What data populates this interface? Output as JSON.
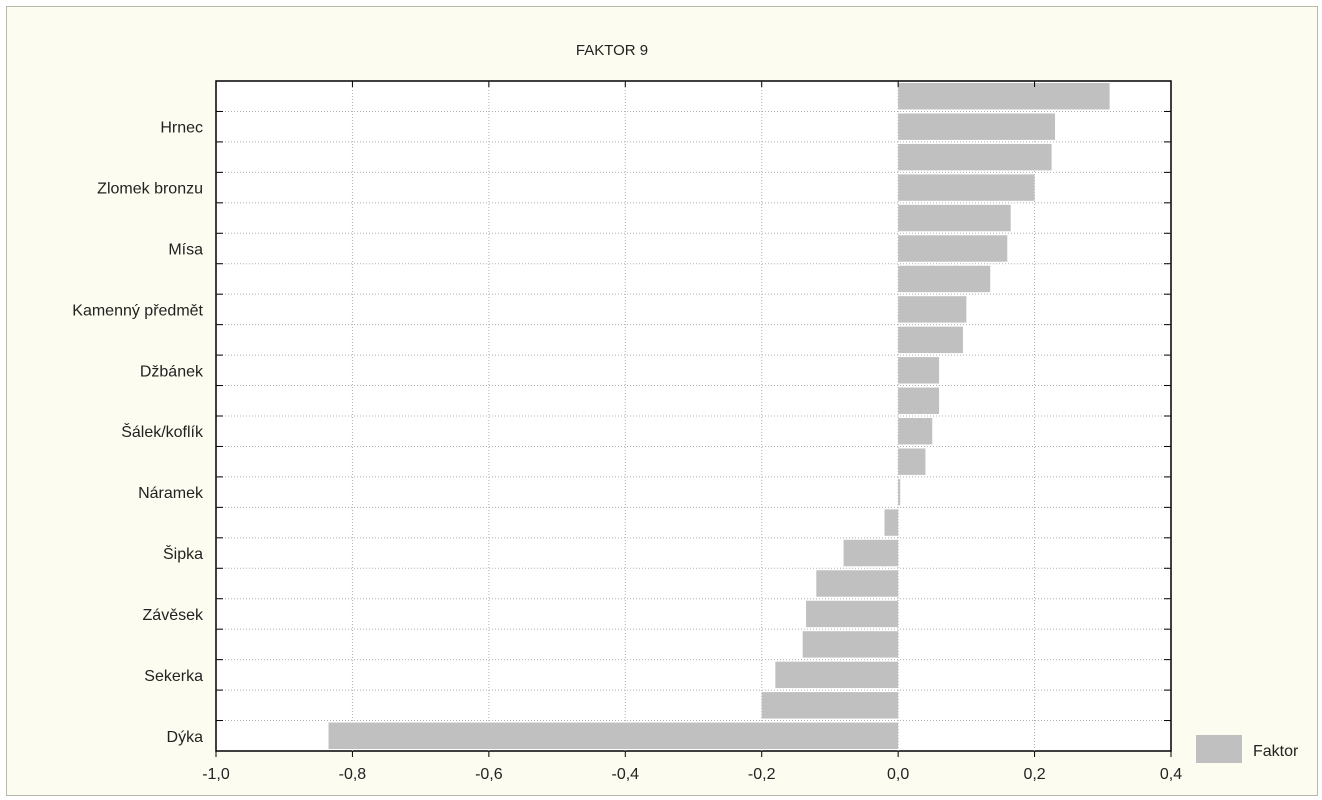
{
  "chart_data": {
    "type": "bar",
    "orientation": "horizontal",
    "title": "FAKTOR 9",
    "xlim": [
      -1.0,
      0.4
    ],
    "x_ticks": [
      "-1,0",
      "-0,8",
      "-0,6",
      "-0,4",
      "-0,2",
      "0,0",
      "0,2",
      "0,4"
    ],
    "x_tick_values": [
      -1.0,
      -0.8,
      -0.6,
      -0.4,
      -0.2,
      0.0,
      0.2,
      0.4
    ],
    "grid": true,
    "legend_position": "bottom-right",
    "bar_color": "#c0c0c0",
    "series": [
      {
        "name": "Faktor",
        "values": [
          0.31,
          0.23,
          0.225,
          0.2,
          0.165,
          0.16,
          0.135,
          0.1,
          0.095,
          0.06,
          0.06,
          0.05,
          0.04,
          0.003,
          -0.02,
          -0.08,
          -0.12,
          -0.135,
          -0.14,
          -0.18,
          -0.2,
          -0.835
        ]
      }
    ],
    "category_labels": [
      {
        "index": 1,
        "label": "Hrnec"
      },
      {
        "index": 3,
        "label": "Zlomek bronzu"
      },
      {
        "index": 5,
        "label": "Mísa"
      },
      {
        "index": 7,
        "label": "Kamenný předmět"
      },
      {
        "index": 9,
        "label": "Džbánek"
      },
      {
        "index": 11,
        "label": "Šálek/koflík"
      },
      {
        "index": 13,
        "label": "Náramek"
      },
      {
        "index": 15,
        "label": "Šipka"
      },
      {
        "index": 17,
        "label": "Závěsek"
      },
      {
        "index": 19,
        "label": "Sekerka"
      },
      {
        "index": 21,
        "label": "Dýka"
      }
    ]
  }
}
